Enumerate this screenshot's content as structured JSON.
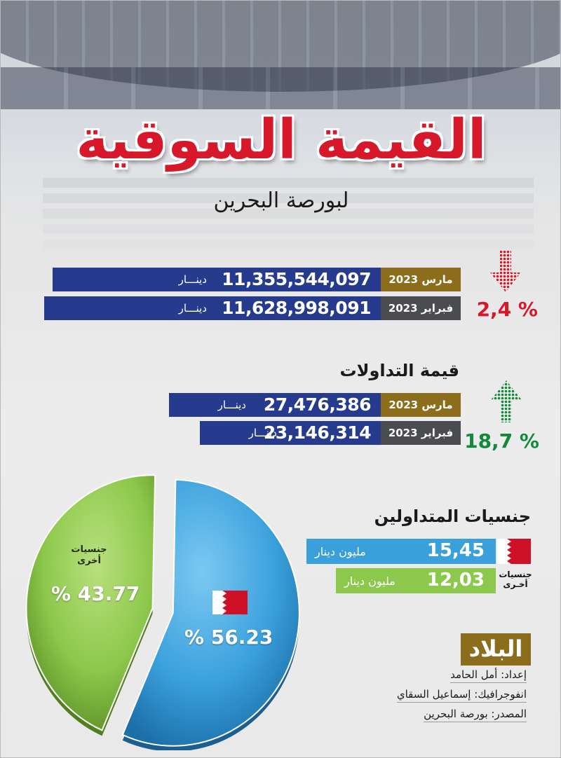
{
  "header": {
    "title": "القيمة السوقية",
    "subtitle": "لبورصة البحرين"
  },
  "market_value": {
    "change_pct": "% 2,4",
    "direction": "down",
    "rows": [
      {
        "label": "مارس 2023",
        "value": "11,355,544,097",
        "unit": "دينـــار"
      },
      {
        "label": "فبراير 2023",
        "value": "11,628,998,091",
        "unit": "دينـــار"
      }
    ]
  },
  "trading_value": {
    "heading": "قيمة التداولات",
    "change_pct": "% 18,7",
    "direction": "up",
    "rows": [
      {
        "label": "مارس 2023",
        "value": "27,476,386",
        "unit": "دينـــار"
      },
      {
        "label": "فبراير 2023",
        "value": "23,146,314",
        "unit": "دينـــار"
      }
    ]
  },
  "nationalities": {
    "heading": "جنسيات المتداولين",
    "rows": [
      {
        "value": "15,45",
        "unit": "مليون دينار",
        "flag": "bahrain-flag"
      },
      {
        "value": "12,03",
        "unit": "مليون دينار",
        "label_line1": "جنسيات",
        "label_line2": "أخـرى"
      }
    ]
  },
  "chart_data": {
    "type": "pie",
    "categories": [
      "Bahrain",
      "جنسيات أخرى"
    ],
    "values": [
      56.23,
      43.77
    ],
    "labels": [
      "% 56.23",
      "% 43.77"
    ],
    "colors": [
      "#3aa0dc",
      "#8cc84b"
    ],
    "other_label_line1": "جنسيات",
    "other_label_line2": "أخرى"
  },
  "credits": {
    "logo": "البلاد",
    "prepared_by": "إعداد: أمل الحامد",
    "infographic": "انفوجرافيك: إسماعيل السقاي",
    "source": "المصدر: بورصة البحرين"
  },
  "colors": {
    "navy": "#263b8e",
    "gold": "#8c6d1c",
    "red": "#d7182a",
    "green": "#138a3a",
    "blue": "#3aa0dc",
    "light_green": "#8cc84b"
  }
}
